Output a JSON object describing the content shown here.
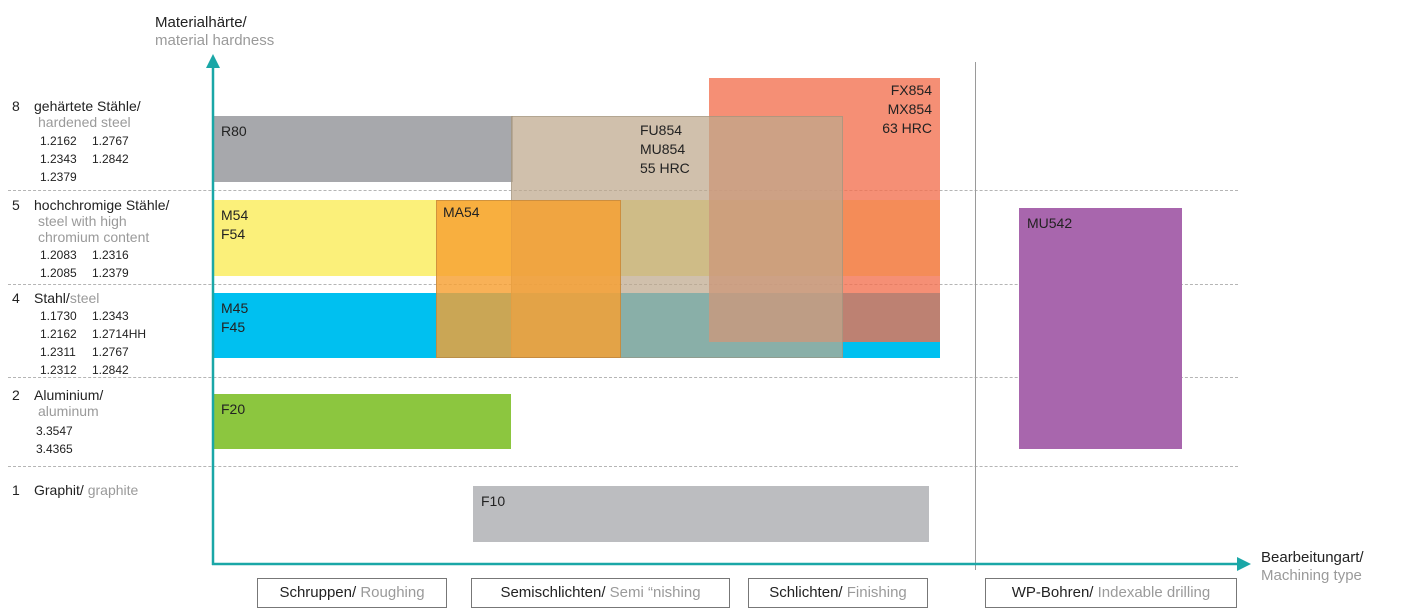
{
  "y_axis": {
    "title_de": "Materialhärte/",
    "title_en": "material hardness"
  },
  "x_axis": {
    "title_de": "Bearbeitungart/",
    "title_en": "Machining type"
  },
  "rows": [
    {
      "num": "8",
      "label_de": "gehärtete Stähle/",
      "label_en": "hardened steel",
      "codes": [
        [
          "1.2162",
          "1.2767"
        ],
        [
          "1.2343",
          "1.2842"
        ],
        [
          "1.2379",
          ""
        ]
      ]
    },
    {
      "num": "5",
      "label_de": "hochchromige Stähle/",
      "label_en": "steel with high chromium content",
      "codes": [
        [
          "1.2083",
          "1.2316"
        ],
        [
          "1.2085",
          "1.2379"
        ]
      ]
    },
    {
      "num": "4",
      "label_de": "Stahl/",
      "label_en": "steel",
      "codes": [
        [
          "1.1730",
          "1.2343"
        ],
        [
          "1.2162",
          "1.2714HH"
        ],
        [
          "1.2311",
          "1.2767"
        ],
        [
          "1.2312",
          "1.2842"
        ]
      ]
    },
    {
      "num": "2",
      "label_de": "Aluminium/",
      "label_en": "aluminum",
      "codes": [
        [
          "3.3547",
          ""
        ],
        [
          "3.4365",
          ""
        ]
      ]
    },
    {
      "num": "1",
      "label_de": "Graphit/",
      "label_en": "graphite",
      "codes": []
    }
  ],
  "products": {
    "r80": "R80",
    "m54": "M54",
    "f54": "F54",
    "ma54": "MA54",
    "m45": "M45",
    "f45": "F45",
    "f20": "F20",
    "f10": "F10",
    "fu854": "FU854",
    "mu854": "MU854",
    "hrc55": "55 HRC",
    "fx854": "FX854",
    "mx854": "MX854",
    "hrc63": "63 HRC",
    "mu542": "MU542"
  },
  "categories": [
    {
      "de": "Schruppen/",
      "en": "Roughing"
    },
    {
      "de": "Semischlichten/",
      "en": "Semi “nishing"
    },
    {
      "de": "Schlichten/",
      "en": "Finishing"
    },
    {
      "de": "WP-Bohren/",
      "en": "Indexable drilling"
    }
  ],
  "colors": {
    "axis": "#1aa7a7",
    "r80": "#a7a8ac",
    "yellow": "#fbf07a",
    "blue": "#00c0f0",
    "green": "#8cc63f",
    "graphite": "#bcbdc0",
    "orange": "#f59a3c",
    "purple": "#a866ad",
    "salmon": "#f48e6f"
  }
}
